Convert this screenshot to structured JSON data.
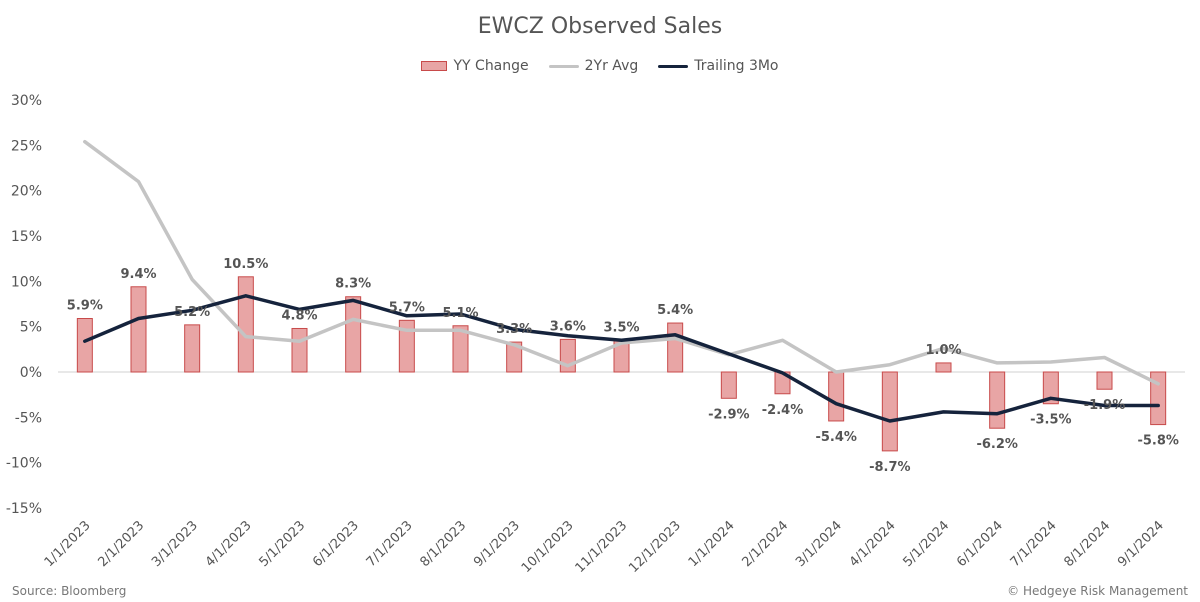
{
  "chart_data": {
    "type": "bar",
    "title": "EWCZ Observed Sales",
    "categories": [
      "1/1/2023",
      "2/1/2023",
      "3/1/2023",
      "4/1/2023",
      "5/1/2023",
      "6/1/2023",
      "7/1/2023",
      "8/1/2023",
      "9/1/2023",
      "10/1/2023",
      "11/1/2023",
      "12/1/2023",
      "1/1/2024",
      "2/1/2024",
      "3/1/2024",
      "4/1/2024",
      "5/1/2024",
      "6/1/2024",
      "7/1/2024",
      "8/1/2024",
      "9/1/2024"
    ],
    "series": [
      {
        "name": "YY Change",
        "kind": "bar",
        "color": "#e8a5a5",
        "values": [
          5.9,
          9.4,
          5.2,
          10.5,
          4.8,
          8.3,
          5.7,
          5.1,
          3.3,
          3.6,
          3.5,
          5.4,
          -2.9,
          -2.4,
          -5.4,
          -8.7,
          1.0,
          -6.2,
          -3.5,
          -1.9,
          -5.8
        ],
        "labels": [
          "5.9%",
          "9.4%",
          "5.2%",
          "10.5%",
          "4.8%",
          "8.3%",
          "5.7%",
          "5.1%",
          "3.3%",
          "3.6%",
          "3.5%",
          "5.4%",
          "-2.9%",
          "-2.4%",
          "-5.4%",
          "-8.7%",
          "1.0%",
          "-6.2%",
          "-3.5%",
          "-1.9%",
          "-5.8%"
        ]
      },
      {
        "name": "2Yr Avg",
        "kind": "line",
        "color": "#c4c4c4",
        "values": [
          25.4,
          21.0,
          10.2,
          3.9,
          3.4,
          5.8,
          4.6,
          4.6,
          3.0,
          0.7,
          3.2,
          3.7,
          1.9,
          3.5,
          0.0,
          0.8,
          2.6,
          1.0,
          1.1,
          1.6,
          -1.3
        ]
      },
      {
        "name": "Trailing 3Mo",
        "kind": "line",
        "color": "#15233c",
        "values": [
          3.4,
          5.9,
          6.8,
          8.4,
          6.9,
          7.9,
          6.2,
          6.4,
          4.7,
          4.0,
          3.5,
          4.1,
          2.0,
          -0.1,
          -3.5,
          -5.4,
          -4.4,
          -4.6,
          -2.9,
          -3.7,
          -3.7
        ]
      }
    ],
    "ylim": [
      -15,
      30
    ],
    "yticks": [
      -15,
      -10,
      -5,
      0,
      5,
      10,
      15,
      20,
      25,
      30
    ],
    "ytick_labels": [
      "-15%",
      "-10%",
      "-5%",
      "0%",
      "5%",
      "10%",
      "15%",
      "20%",
      "25%",
      "30%"
    ],
    "legend_position": "top-center",
    "grid": false
  },
  "legend": [
    {
      "label": "YY Change",
      "color": "#e8a5a5"
    },
    {
      "label": "2Yr Avg",
      "color": "#c4c4c4"
    },
    {
      "label": "Trailing 3Mo",
      "color": "#15233c"
    }
  ],
  "footer": {
    "source": "Source: Bloomberg",
    "credit": "© Hedgeye Risk Management"
  }
}
